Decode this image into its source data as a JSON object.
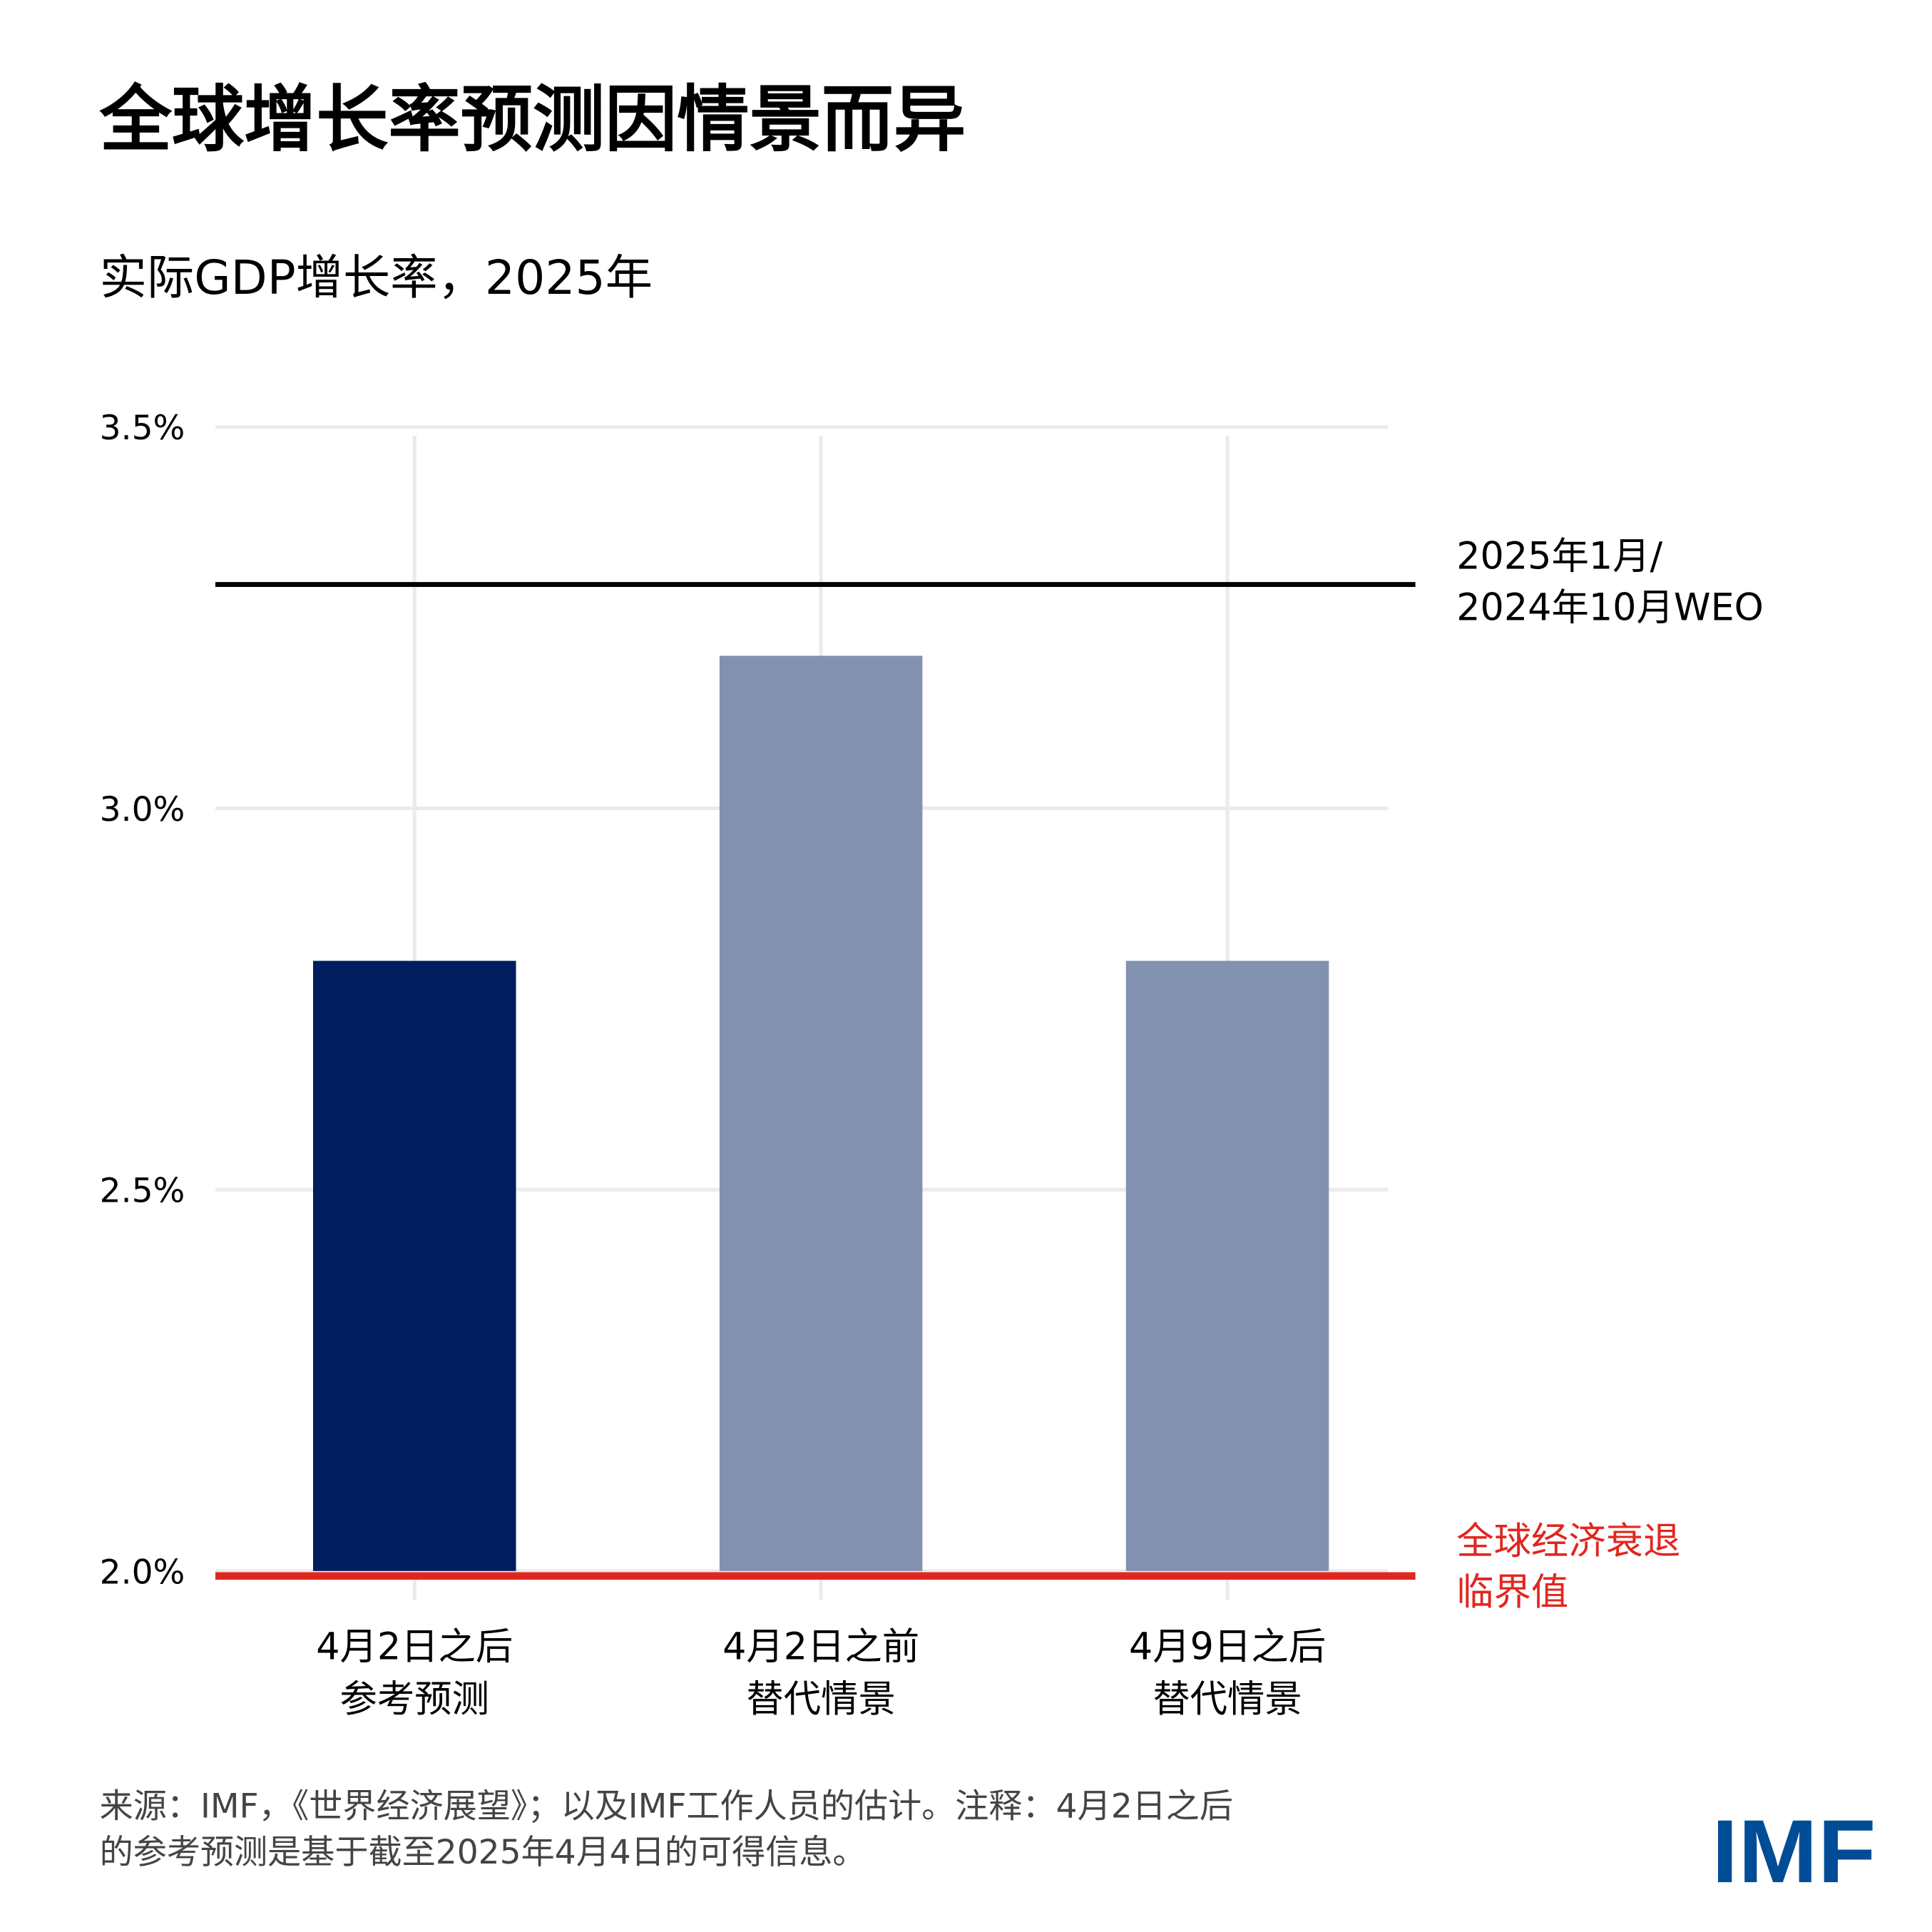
{
  "title": "全球增长率预测因情景而异",
  "subtitle": "实际GDP增长率，2025年",
  "colors": {
    "reference": "#001E5E",
    "alternative": "#8291B0",
    "weo_line": "#000000",
    "recession_line": "#E0271F",
    "grid": "#EBEBEB",
    "logo": "#004C97"
  },
  "chart_data": {
    "type": "bar",
    "categories": [
      [
        "4月2日之后",
        "参考预测"
      ],
      [
        "4月2日之前",
        "替代情景"
      ],
      [
        "4月9日之后",
        "替代情景"
      ]
    ],
    "values": [
      2.8,
      3.2,
      2.8
    ],
    "bar_colors": [
      "#001E5E",
      "#8291B0",
      "#8291B0"
    ],
    "ylim": [
      2.0,
      3.5
    ],
    "yticks": [
      2.0,
      2.5,
      3.0,
      3.5
    ],
    "ytick_labels": [
      "2.0%",
      "2.5%",
      "3.0%",
      "3.5%"
    ],
    "grid": true,
    "reference_lines": [
      {
        "value": 3.3,
        "label": [
          "2025年1月/",
          "2024年10月WEO"
        ],
        "color": "#000000"
      },
      {
        "value": 2.0,
        "label": [
          "全球经济衰退",
          "临界值"
        ],
        "color": "#E0271F"
      }
    ]
  },
  "footnote": [
    "来源：IMF，《世界经济展望》；以及IMF工作人员的估计。注释：4月2日之后",
    "的参考预测是基于截至2025年4月4日的可得信息。"
  ],
  "logo": "IMF"
}
